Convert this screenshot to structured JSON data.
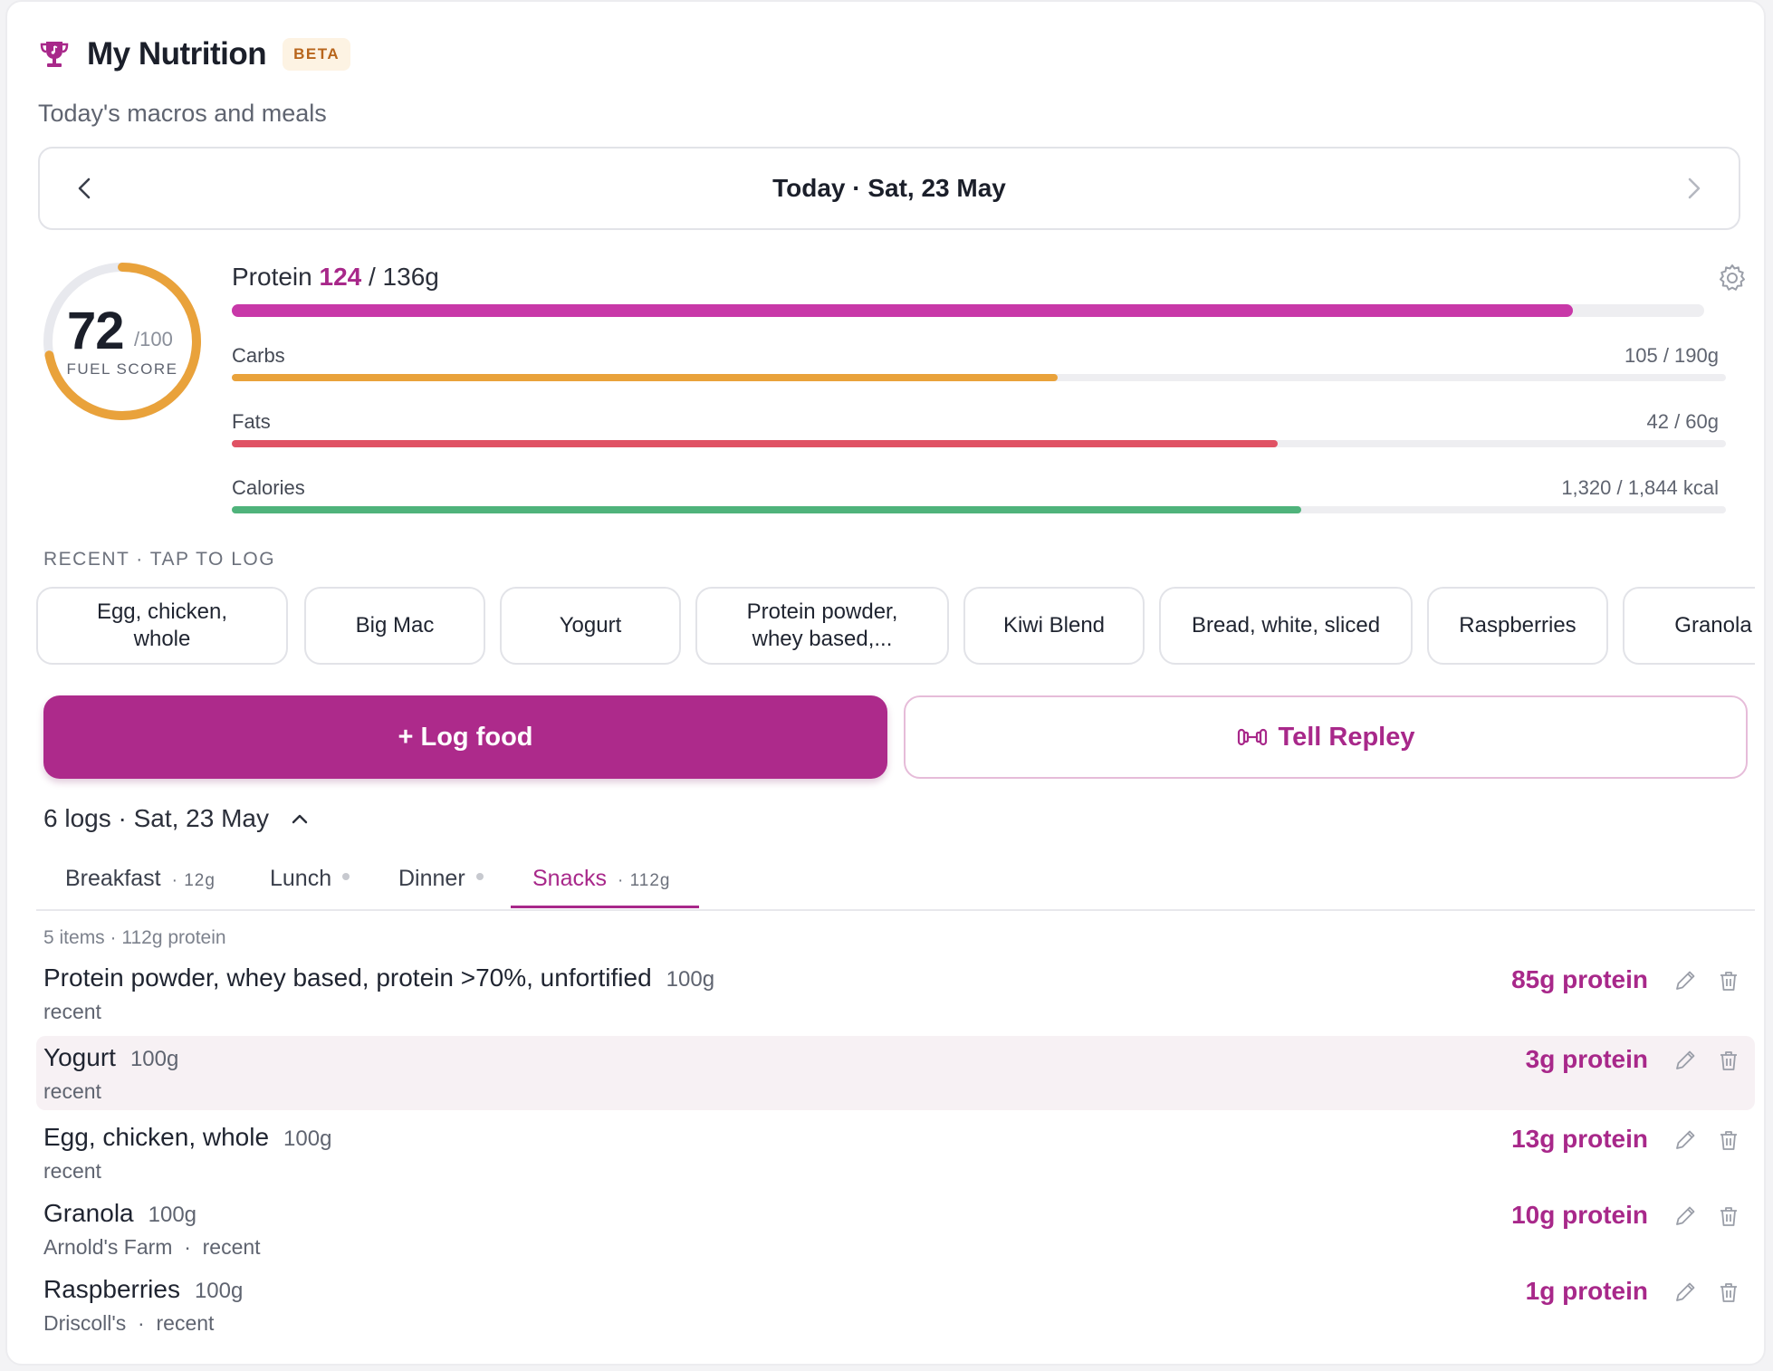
{
  "header": {
    "title": "My Nutrition",
    "badge": "BETA",
    "subtitle": "Today's macros and meals",
    "icon": "trophy-icon"
  },
  "date_nav": {
    "label": "Today · Sat, 23 May",
    "prev_icon": "chevron-left-icon",
    "next_icon": "chevron-right-icon"
  },
  "score": {
    "value": "72",
    "max": "/100",
    "label": "FUEL SCORE",
    "fraction": 0.72,
    "color": "#e9a23b"
  },
  "macros": {
    "protein": {
      "label": "Protein",
      "value": "124",
      "goal": " / 136g",
      "fraction": 0.911,
      "color": "#c838a8"
    },
    "carbs": {
      "label": "Carbs",
      "value_text": "105 / 190g",
      "fraction": 0.553,
      "color": "#e9a23b"
    },
    "fats": {
      "label": "Fats",
      "value_text": "42 / 60g",
      "fraction": 0.7,
      "color": "#e05264"
    },
    "calories": {
      "label": "Calories",
      "value_text": "1,320 / 1,844 kcal",
      "fraction": 0.716,
      "color": "#4fb37b"
    }
  },
  "recent": {
    "header": "RECENT · TAP TO LOG",
    "chips": [
      {
        "line1": "Egg, chicken,",
        "line2": "whole"
      },
      {
        "line1": "Big Mac",
        "line2": ""
      },
      {
        "line1": "Yogurt",
        "line2": ""
      },
      {
        "line1": "Protein powder,",
        "line2": "whey based,..."
      },
      {
        "line1": "Kiwi Blend",
        "line2": ""
      },
      {
        "line1": "Bread, white, sliced",
        "line2": ""
      },
      {
        "line1": "Raspberries",
        "line2": ""
      },
      {
        "line1": "Granola",
        "line2": ""
      }
    ]
  },
  "actions": {
    "log_food": "+ Log food",
    "tell": "Tell Repley"
  },
  "logs": {
    "header": "6 logs · Sat, 23 May",
    "tabs": [
      {
        "label": "Breakfast",
        "meta": "· 12g",
        "dot": false
      },
      {
        "label": "Lunch",
        "meta": "",
        "dot": true
      },
      {
        "label": "Dinner",
        "meta": "",
        "dot": true
      },
      {
        "label": "Snacks",
        "meta": "· 112g",
        "dot": false
      }
    ],
    "active_tab": "Snacks",
    "summary": "5 items · 112g protein",
    "items": [
      {
        "name": "Protein powder, whey based, protein >70%, unfortified",
        "qty": "100g",
        "sub": "recent",
        "protein": "85g protein"
      },
      {
        "name": "Yogurt",
        "qty": "100g",
        "sub": "recent",
        "protein": "3g protein"
      },
      {
        "name": "Egg, chicken, whole",
        "qty": "100g",
        "sub": "recent",
        "protein": "13g protein"
      },
      {
        "name": "Granola",
        "qty": "100g",
        "sub": "Arnold's Farm  ·  recent",
        "protein": "10g protein"
      },
      {
        "name": "Raspberries",
        "qty": "100g",
        "sub": "Driscoll's  ·  recent",
        "protein": "1g protein"
      }
    ]
  },
  "colors": {
    "accent": "#ad2a8b",
    "accent_text": "#a8288a"
  }
}
